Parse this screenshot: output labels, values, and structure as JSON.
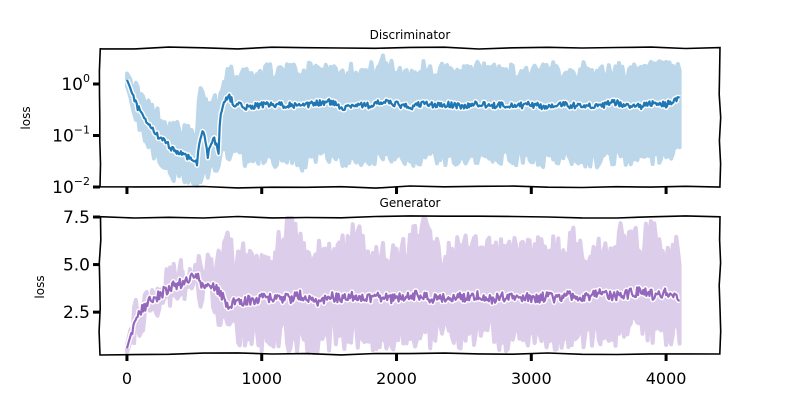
{
  "chart_data": [
    {
      "type": "line",
      "title": "Discriminator",
      "xlabel": "",
      "ylabel": "loss",
      "yscale": "log",
      "ylim": [
        0.01,
        5.0
      ],
      "xlim": [
        -200,
        4400
      ],
      "yticks": [
        {
          "value": 0.01,
          "base": "10",
          "exp": "−2"
        },
        {
          "value": 0.1,
          "base": "10",
          "exp": "−1"
        },
        {
          "value": 1,
          "base": "10",
          "exp": "0"
        }
      ],
      "xticks": [
        0,
        1000,
        2000,
        3000,
        4000
      ],
      "series": [
        {
          "color": "#1f77b4",
          "band_color": "#bcd6ea",
          "x": [
            0,
            40,
            80,
            120,
            160,
            200,
            240,
            280,
            320,
            360,
            400,
            440,
            480,
            520,
            560,
            600,
            640,
            680,
            720,
            760,
            800,
            900,
            1000,
            1100,
            1200,
            1300,
            1400,
            1500,
            1600,
            1700,
            1800,
            1900,
            2000,
            2100,
            2200,
            2300,
            2400,
            2500,
            2600,
            2700,
            2800,
            2900,
            3000,
            3100,
            3200,
            3300,
            3400,
            3500,
            3600,
            3700,
            3800,
            3900,
            4000,
            4100
          ],
          "mean": [
            1.2,
            0.6,
            0.35,
            0.22,
            0.16,
            0.12,
            0.09,
            0.075,
            0.06,
            0.05,
            0.045,
            0.04,
            0.035,
            0.03,
            0.12,
            0.04,
            0.09,
            0.05,
            0.5,
            0.55,
            0.4,
            0.35,
            0.4,
            0.38,
            0.4,
            0.36,
            0.42,
            0.45,
            0.35,
            0.4,
            0.38,
            0.45,
            0.4,
            0.35,
            0.42,
            0.38,
            0.4,
            0.36,
            0.42,
            0.37,
            0.4,
            0.38,
            0.4,
            0.35,
            0.42,
            0.38,
            0.4,
            0.35,
            0.45,
            0.38,
            0.36,
            0.42,
            0.4,
            0.5
          ],
          "lower": [
            0.9,
            0.35,
            0.18,
            0.1,
            0.07,
            0.05,
            0.035,
            0.025,
            0.02,
            0.018,
            0.016,
            0.015,
            0.013,
            0.012,
            0.02,
            0.018,
            0.03,
            0.02,
            0.06,
            0.05,
            0.04,
            0.035,
            0.04,
            0.035,
            0.04,
            0.03,
            0.04,
            0.045,
            0.035,
            0.04,
            0.035,
            0.04,
            0.045,
            0.035,
            0.04,
            0.04,
            0.035,
            0.04,
            0.04,
            0.035,
            0.04,
            0.035,
            0.04,
            0.035,
            0.04,
            0.04,
            0.035,
            0.035,
            0.04,
            0.04,
            0.035,
            0.04,
            0.04,
            0.045
          ],
          "upper": [
            1.6,
            1.0,
            0.7,
            0.45,
            0.35,
            0.28,
            0.22,
            0.18,
            0.15,
            0.13,
            0.12,
            0.11,
            0.1,
            0.09,
            0.9,
            0.2,
            0.6,
            0.3,
            1.5,
            1.8,
            1.4,
            1.6,
            1.5,
            1.8,
            1.6,
            1.7,
            1.9,
            2.0,
            1.6,
            1.8,
            1.7,
            2.5,
            1.8,
            1.6,
            1.9,
            1.7,
            1.8,
            1.6,
            1.9,
            1.7,
            1.8,
            1.6,
            1.8,
            1.6,
            1.9,
            1.7,
            1.8,
            1.6,
            1.9,
            1.7,
            1.6,
            1.9,
            1.8,
            1.9
          ]
        }
      ]
    },
    {
      "type": "line",
      "title": "Generator",
      "xlabel": "",
      "ylabel": "loss",
      "yscale": "linear",
      "ylim": [
        0.3,
        7.5
      ],
      "xlim": [
        -200,
        4400
      ],
      "yticks": [
        {
          "value": 2.5,
          "label": "2.5"
        },
        {
          "value": 5.0,
          "label": "5.0"
        },
        {
          "value": 7.5,
          "label": "7.5"
        }
      ],
      "xticks": [
        {
          "value": 0,
          "label": "0"
        },
        {
          "value": 1000,
          "label": "1000"
        },
        {
          "value": 2000,
          "label": "2000"
        },
        {
          "value": 3000,
          "label": "3000"
        },
        {
          "value": 4000,
          "label": "4000"
        }
      ],
      "series": [
        {
          "color": "#9467bd",
          "band_color": "#dccdea",
          "x": [
            0,
            40,
            80,
            120,
            160,
            200,
            240,
            280,
            320,
            360,
            400,
            440,
            480,
            520,
            560,
            600,
            640,
            680,
            720,
            760,
            800,
            900,
            1000,
            1100,
            1200,
            1300,
            1400,
            1500,
            1600,
            1700,
            1800,
            1900,
            2000,
            2100,
            2200,
            2300,
            2400,
            2500,
            2600,
            2700,
            2800,
            2900,
            3000,
            3100,
            3200,
            3300,
            3400,
            3500,
            3600,
            3700,
            3800,
            3900,
            4000,
            4100
          ],
          "mean": [
            0.6,
            1.6,
            2.3,
            2.7,
            3.0,
            3.2,
            3.4,
            3.6,
            3.8,
            3.9,
            4.0,
            4.1,
            4.3,
            4.5,
            3.8,
            4.2,
            3.9,
            3.6,
            3.2,
            2.8,
            3.0,
            3.1,
            3.2,
            3.3,
            3.2,
            3.4,
            3.0,
            3.3,
            3.2,
            3.4,
            3.2,
            3.3,
            3.2,
            3.4,
            3.3,
            3.2,
            3.3,
            3.3,
            3.4,
            3.2,
            3.3,
            3.4,
            3.2,
            3.3,
            3.2,
            3.4,
            3.3,
            3.5,
            3.3,
            3.4,
            3.6,
            3.4,
            3.5,
            3.3
          ],
          "lower": [
            0.4,
            1.2,
            2.0,
            2.4,
            2.7,
            2.9,
            3.1,
            3.3,
            3.5,
            3.6,
            3.7,
            3.8,
            4.0,
            4.2,
            3.3,
            3.8,
            3.4,
            2.5,
            2.0,
            1.8,
            1.5,
            1.4,
            1.3,
            1.4,
            1.3,
            1.2,
            0.5,
            1.3,
            1.4,
            1.5,
            1.3,
            1.4,
            1.2,
            1.4,
            1.5,
            1.3,
            1.4,
            1.5,
            1.6,
            1.4,
            1.3,
            1.5,
            1.4,
            1.5,
            1.3,
            1.5,
            1.4,
            1.6,
            1.5,
            1.6,
            1.7,
            1.5,
            1.6,
            1.7
          ],
          "upper": [
            0.8,
            2.0,
            2.6,
            3.0,
            3.3,
            3.5,
            3.7,
            3.9,
            4.1,
            4.2,
            4.4,
            4.5,
            4.6,
            4.8,
            4.4,
            4.7,
            4.5,
            5.0,
            5.5,
            6.0,
            5.2,
            5.3,
            5.5,
            5.4,
            7.3,
            5.6,
            5.4,
            5.5,
            5.7,
            6.5,
            5.6,
            5.5,
            5.3,
            6.0,
            7.2,
            5.6,
            5.4,
            5.8,
            5.6,
            5.5,
            6.0,
            5.6,
            5.8,
            5.5,
            5.7,
            6.2,
            5.6,
            5.8,
            5.6,
            6.8,
            5.9,
            7.2,
            5.8,
            5.6
          ]
        }
      ]
    }
  ]
}
